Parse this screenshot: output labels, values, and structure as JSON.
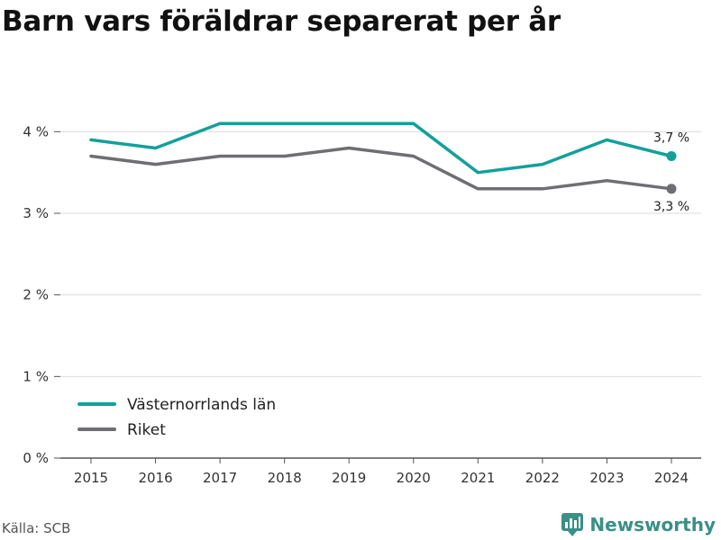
{
  "title": "Barn vars föräldrar separerat per år",
  "source": "Källa: SCB",
  "brand": {
    "name": "Newsworthy"
  },
  "chart_data": {
    "type": "line",
    "title": "Barn vars föräldrar separerat per år",
    "xlabel": "",
    "ylabel": "",
    "x": [
      "2015",
      "2016",
      "2017",
      "2018",
      "2019",
      "2020",
      "2021",
      "2022",
      "2023",
      "2024"
    ],
    "series": [
      {
        "name": "Västernorrlands län",
        "color": "#13a09a",
        "values": [
          3.9,
          3.8,
          4.1,
          4.1,
          4.1,
          4.1,
          3.5,
          3.6,
          3.9,
          3.7
        ],
        "end_label": "3,7 %"
      },
      {
        "name": "Riket",
        "color": "#6e6e73",
        "values": [
          3.7,
          3.6,
          3.7,
          3.7,
          3.8,
          3.7,
          3.3,
          3.3,
          3.4,
          3.3
        ],
        "end_label": "3,3 %"
      }
    ],
    "ylim": [
      0,
      4.5
    ],
    "yticks": [
      {
        "value": 0,
        "label": "0 %"
      },
      {
        "value": 1,
        "label": "1 %"
      },
      {
        "value": 2,
        "label": "2 %"
      },
      {
        "value": 3,
        "label": "3 %"
      },
      {
        "value": 4,
        "label": "4 %"
      }
    ],
    "grid": true,
    "legend": "bottom-left"
  }
}
